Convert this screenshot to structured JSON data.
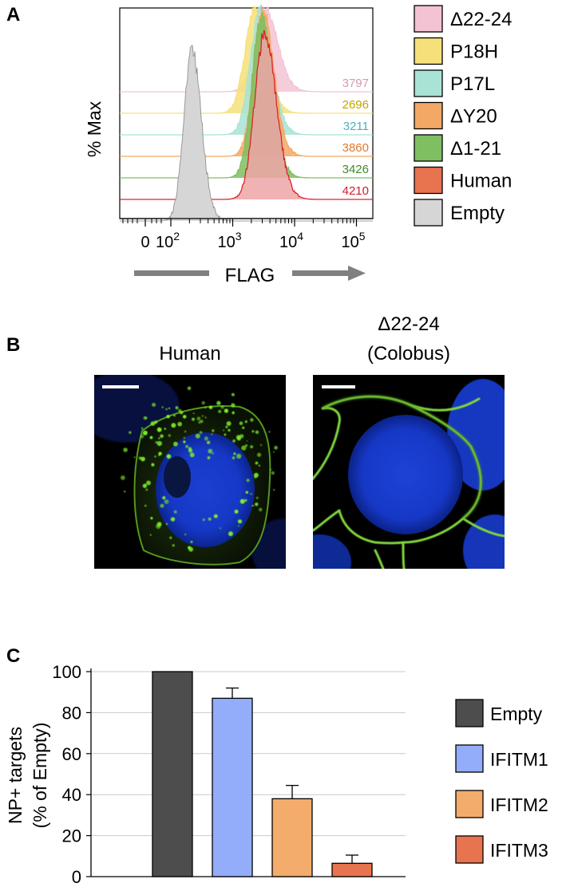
{
  "panels": {
    "a": "A",
    "b": "B",
    "c": "C"
  },
  "chart_data": [
    {
      "type": "area",
      "panel": "A",
      "ylabel": "% Max",
      "xlabel": "FLAG",
      "x_scale": "log",
      "x_ticks": [
        {
          "label": "0",
          "value": 0
        },
        {
          "label": "10",
          "exp": "2",
          "value": 100
        },
        {
          "label": "10",
          "exp": "3",
          "value": 1000
        },
        {
          "label": "10",
          "exp": "4",
          "value": 10000
        },
        {
          "label": "10",
          "exp": "5",
          "value": 100000
        }
      ],
      "series": [
        {
          "name": "Δ22-24",
          "value": 3797,
          "value_label": "3797",
          "color": "#f3c3d3",
          "text_color": "#d89aa9",
          "peak": 3400,
          "width": 0.17,
          "height": 0.93,
          "rank": 6
        },
        {
          "name": "P18H",
          "value": 2696,
          "value_label": "2696",
          "color": "#f6e07a",
          "text_color": "#c9a100",
          "peak": 2300,
          "width": 0.16,
          "height": 0.91,
          "rank": 5
        },
        {
          "name": "P17L",
          "value": 3211,
          "value_label": "3211",
          "color": "#a8e3d5",
          "text_color": "#4bb0c2",
          "peak": 2800,
          "width": 0.16,
          "height": 0.93,
          "rank": 4
        },
        {
          "name": "ΔY20",
          "value": 3860,
          "value_label": "3860",
          "color": "#f3a865",
          "text_color": "#e07b2a",
          "peak": 3100,
          "width": 0.15,
          "height": 0.94,
          "rank": 3
        },
        {
          "name": "Δ1-21",
          "value": 3426,
          "value_label": "3426",
          "color": "#7fbf61",
          "text_color": "#3d8b2a",
          "peak": 2900,
          "width": 0.15,
          "height": 0.94,
          "rank": 2
        },
        {
          "name": "Human",
          "value": 4210,
          "value_label": "4210",
          "color": "#eda4a6",
          "text_color": "#d81b2a",
          "line_color": "#d8252e",
          "legend_color": "#e8734f",
          "peak": 3300,
          "width": 0.16,
          "height": 0.97,
          "rank": 1
        },
        {
          "name": "Empty",
          "color": "#d6d6d6",
          "line_color": "#9a9a9a",
          "peak": 220,
          "width": 0.13,
          "height": 1.0,
          "rank": 0
        }
      ]
    },
    {
      "type": "bar",
      "panel": "C",
      "ylabel_lines": [
        "NP+ targets",
        "(% of Empty)"
      ],
      "ylim": [
        0,
        100
      ],
      "yticks": [
        0,
        20,
        40,
        60,
        80,
        100
      ],
      "categories": [
        "Empty",
        "IFITM1",
        "IFITM2",
        "IFITM3"
      ],
      "values": [
        100,
        87,
        38,
        6.5
      ],
      "errors": [
        0,
        5,
        6.5,
        4
      ],
      "colors": [
        "#4d4d4d",
        "#93adfb",
        "#f3ac6b",
        "#e8734f"
      ],
      "grid": true,
      "legend": "right"
    }
  ],
  "panel_b": {
    "images": [
      {
        "title_lines": [
          "Human"
        ]
      },
      {
        "title_lines": [
          "Δ22-24",
          "(Colobus)"
        ]
      }
    ]
  }
}
